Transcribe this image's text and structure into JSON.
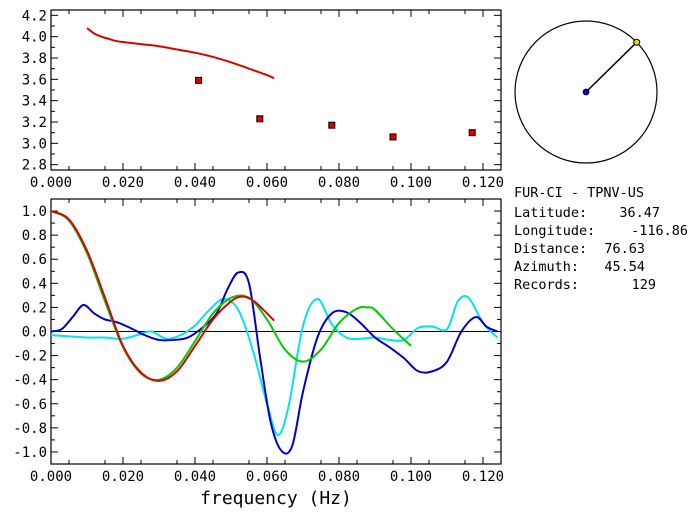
{
  "chart_data": [
    {
      "type": "scatter",
      "xlim": [
        0.0,
        0.125
      ],
      "ylim": [
        2.75,
        4.25
      ],
      "x_ticks": [
        "0.000",
        "0.020",
        "0.040",
        "0.060",
        "0.080",
        "0.100",
        "0.120"
      ],
      "y_ticks": [
        "4.2",
        "4.0",
        "3.8",
        "3.6",
        "3.4",
        "3.2",
        "3.0",
        "2.8"
      ],
      "series": [
        {
          "color": "#dd0000",
          "kind": "line",
          "x": [
            0.01,
            0.012,
            0.014,
            0.016,
            0.018,
            0.02,
            0.025,
            0.03,
            0.035,
            0.04,
            0.045,
            0.05,
            0.055,
            0.06,
            0.062
          ],
          "y": [
            4.08,
            4.03,
            4.0,
            3.98,
            3.96,
            3.95,
            3.93,
            3.91,
            3.88,
            3.85,
            3.81,
            3.76,
            3.7,
            3.64,
            3.61
          ]
        },
        {
          "color": "#dd0000",
          "kind": "marker",
          "x": [
            0.041,
            0.058,
            0.078,
            0.095,
            0.117
          ],
          "y": [
            3.59,
            3.23,
            3.17,
            3.06,
            3.1
          ]
        }
      ]
    },
    {
      "type": "line",
      "xlim": [
        0.0,
        0.125
      ],
      "ylim": [
        -1.1,
        1.1
      ],
      "xlabel": "frequency (Hz)",
      "x_ticks": [
        "0.000",
        "0.020",
        "0.040",
        "0.060",
        "0.080",
        "0.100",
        "0.120"
      ],
      "y_ticks": [
        "1.0",
        "0.8",
        "0.6",
        "0.4",
        "0.2",
        "0.0",
        "-0.2",
        "-0.4",
        "-0.6",
        "-0.8",
        "-1.0"
      ],
      "zero_line": true,
      "series": [
        {
          "color": "#00e5e5",
          "x": [
            0.0,
            0.005,
            0.01,
            0.015,
            0.02,
            0.025,
            0.028,
            0.032,
            0.036,
            0.04,
            0.044,
            0.048,
            0.052,
            0.056,
            0.06,
            0.063,
            0.066,
            0.07,
            0.074,
            0.078,
            0.082,
            0.086,
            0.09,
            0.094,
            0.098,
            0.102,
            0.106,
            0.11,
            0.113,
            0.116,
            0.12,
            0.124
          ],
          "y": [
            -0.03,
            -0.04,
            -0.05,
            -0.05,
            -0.06,
            -0.02,
            0.0,
            -0.06,
            -0.03,
            0.05,
            0.18,
            0.27,
            0.18,
            -0.15,
            -0.6,
            -0.86,
            -0.62,
            0.05,
            0.27,
            0.06,
            -0.05,
            -0.06,
            -0.05,
            -0.07,
            -0.07,
            0.03,
            0.04,
            0.02,
            0.25,
            0.28,
            0.07,
            -0.05
          ]
        },
        {
          "color": "#0000cc",
          "x": [
            0.0,
            0.003,
            0.006,
            0.009,
            0.012,
            0.015,
            0.018,
            0.022,
            0.026,
            0.03,
            0.034,
            0.038,
            0.042,
            0.046,
            0.049,
            0.052,
            0.055,
            0.058,
            0.061,
            0.064,
            0.067,
            0.07,
            0.074,
            0.078,
            0.082,
            0.086,
            0.09,
            0.094,
            0.098,
            0.102,
            0.106,
            0.11,
            0.114,
            0.118,
            0.121,
            0.124
          ],
          "y": [
            0.0,
            0.02,
            0.12,
            0.22,
            0.15,
            0.1,
            0.08,
            0.03,
            -0.03,
            -0.07,
            -0.07,
            -0.05,
            0.03,
            0.15,
            0.35,
            0.49,
            0.4,
            -0.2,
            -0.75,
            -0.99,
            -0.95,
            -0.5,
            -0.05,
            0.15,
            0.16,
            0.07,
            -0.05,
            -0.13,
            -0.22,
            -0.33,
            -0.33,
            -0.25,
            0.0,
            0.12,
            0.04,
            0.0
          ]
        },
        {
          "color": "#00cc00",
          "x": [
            0.0,
            0.005,
            0.01,
            0.015,
            0.02,
            0.025,
            0.03,
            0.035,
            0.04,
            0.045,
            0.05,
            0.055,
            0.06,
            0.065,
            0.07,
            0.075,
            0.08,
            0.085,
            0.088,
            0.09,
            0.095,
            0.1
          ],
          "y": [
            1.0,
            0.92,
            0.65,
            0.25,
            -0.13,
            -0.35,
            -0.4,
            -0.3,
            -0.08,
            0.15,
            0.28,
            0.28,
            0.1,
            -0.15,
            -0.25,
            -0.15,
            0.07,
            0.19,
            0.2,
            0.18,
            0.02,
            -0.12
          ]
        },
        {
          "color": "#dd0000",
          "x": [
            0.0,
            0.005,
            0.01,
            0.015,
            0.02,
            0.025,
            0.03,
            0.035,
            0.04,
            0.045,
            0.05,
            0.053,
            0.056,
            0.059,
            0.062
          ],
          "y": [
            1.0,
            0.93,
            0.67,
            0.28,
            -0.12,
            -0.34,
            -0.41,
            -0.33,
            -0.12,
            0.1,
            0.25,
            0.29,
            0.26,
            0.18,
            0.09
          ]
        }
      ]
    },
    {
      "type": "polar",
      "azimuth_deg": 45.54,
      "ratio": 1.0
    }
  ],
  "station": {
    "name": "FUR-CI - TPNV-US",
    "rows": [
      {
        "label": "Latitude:",
        "value": "36.47"
      },
      {
        "label": "Longitude:",
        "value": "-116.86"
      },
      {
        "label": "Distance:",
        "value": "76.63"
      },
      {
        "label": "Azimuth:",
        "value": "45.54"
      },
      {
        "label": "Records:",
        "value": "129"
      }
    ]
  }
}
